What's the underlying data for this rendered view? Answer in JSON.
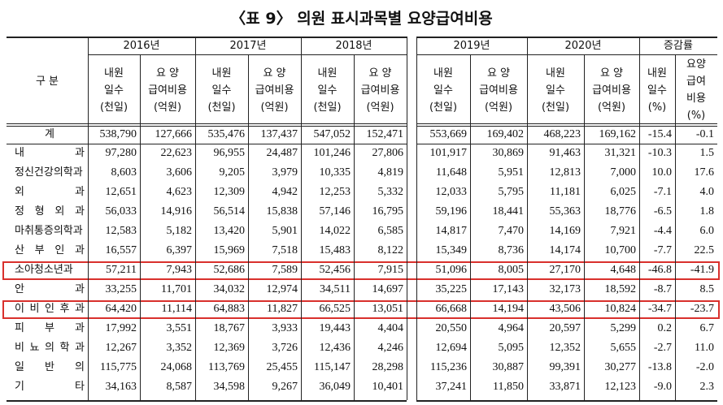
{
  "title": "〈표 9〉 의원 표시과목별 요양급여비용",
  "table": {
    "corner_label": "구 분",
    "column_groups": [
      {
        "label": "2016년",
        "subheaders": [
          [
            "내원",
            "일수",
            "(천일)"
          ],
          [
            "요 양",
            "급여비용",
            "(억원)"
          ]
        ]
      },
      {
        "label": "2017년",
        "subheaders": [
          [
            "내원",
            "일수",
            "(천일)"
          ],
          [
            "요 양",
            "급여비용",
            "(억원)"
          ]
        ]
      },
      {
        "label": "2018년",
        "subheaders": [
          [
            "내원",
            "일수",
            "(천일)"
          ],
          [
            "요 양",
            "급여비용",
            "(억원)"
          ]
        ]
      },
      {
        "label": "2019년",
        "subheaders": [
          [
            "내원",
            "일수",
            "(천일)"
          ],
          [
            "요 양",
            "급여비용",
            "(억원)"
          ]
        ]
      },
      {
        "label": "2020년",
        "subheaders": [
          [
            "내원",
            "일수",
            "(천일)"
          ],
          [
            "요 양",
            "급여비용",
            "(억원)"
          ]
        ]
      },
      {
        "label": "증감률",
        "subheaders": [
          [
            "내원",
            "일수",
            "(%)"
          ],
          [
            "요양",
            "급여",
            "비용",
            "(%)"
          ]
        ]
      }
    ],
    "rows": [
      {
        "label": "계",
        "cells": [
          "538,790",
          "127,666",
          "535,476",
          "137,437",
          "547,052",
          "152,471",
          "553,669",
          "169,402",
          "468,223",
          "169,162",
          "-15.4",
          "-0.1"
        ]
      },
      {
        "label": "내 과",
        "cells": [
          "97,280",
          "22,623",
          "96,955",
          "24,487",
          "101,246",
          "27,806",
          "101,917",
          "30,869",
          "91,463",
          "31,321",
          "-10.3",
          "1.5"
        ]
      },
      {
        "label": "정신건강의학과",
        "cells": [
          "8,603",
          "3,606",
          "9,205",
          "3,979",
          "10,335",
          "4,819",
          "11,648",
          "5,951",
          "12,813",
          "7,000",
          "10.0",
          "17.6"
        ]
      },
      {
        "label": "외 과",
        "cells": [
          "12,651",
          "4,623",
          "12,309",
          "4,942",
          "12,253",
          "5,332",
          "12,033",
          "5,795",
          "11,181",
          "6,025",
          "-7.1",
          "4.0"
        ]
      },
      {
        "label": "정 형 외 과",
        "cells": [
          "56,033",
          "14,916",
          "56,514",
          "15,838",
          "57,146",
          "16,795",
          "59,196",
          "18,441",
          "55,363",
          "18,776",
          "-6.5",
          "1.8"
        ]
      },
      {
        "label": "마취통증의학과",
        "cells": [
          "12,583",
          "5,182",
          "13,420",
          "5,901",
          "14,022",
          "6,585",
          "14,817",
          "7,470",
          "14,169",
          "7,921",
          "-4.4",
          "6.0"
        ]
      },
      {
        "label": "산 부 인 과",
        "cells": [
          "16,557",
          "6,397",
          "15,969",
          "7,518",
          "15,483",
          "8,122",
          "15,349",
          "8,736",
          "14,174",
          "10,700",
          "-7.7",
          "22.5"
        ]
      },
      {
        "label": "소아청소년과",
        "highlighted": true,
        "cells": [
          "57,211",
          "7,943",
          "52,686",
          "7,589",
          "52,456",
          "7,915",
          "51,096",
          "8,005",
          "27,170",
          "4,648",
          "-46.8",
          "-41.9"
        ]
      },
      {
        "label": "안 과",
        "cells": [
          "33,255",
          "11,701",
          "34,032",
          "12,974",
          "34,511",
          "14,697",
          "35,225",
          "17,143",
          "32,173",
          "18,592",
          "-8.7",
          "8.5"
        ]
      },
      {
        "label": "이 비 인 후 과",
        "highlighted": true,
        "cells": [
          "64,420",
          "11,114",
          "64,883",
          "11,827",
          "66,525",
          "13,051",
          "66,668",
          "14,194",
          "43,506",
          "10,824",
          "-34.7",
          "-23.7"
        ]
      },
      {
        "label": "피 부 과",
        "cells": [
          "17,992",
          "3,551",
          "18,767",
          "3,933",
          "19,443",
          "4,404",
          "20,550",
          "4,964",
          "20,597",
          "5,299",
          "0.2",
          "6.7"
        ]
      },
      {
        "label": "비 뇨 의 학 과",
        "cells": [
          "12,267",
          "3,352",
          "12,369",
          "3,726",
          "12,436",
          "4,246",
          "12,694",
          "5,095",
          "12,352",
          "5,655",
          "-2.7",
          "11.0"
        ]
      },
      {
        "label": "일 반 의",
        "cells": [
          "115,775",
          "24,068",
          "113,769",
          "25,455",
          "115,147",
          "28,298",
          "115,236",
          "30,887",
          "99,391",
          "30,277",
          "-13.8",
          "-2.0"
        ]
      },
      {
        "label": "기 타",
        "cells": [
          "34,163",
          "8,587",
          "34,598",
          "9,267",
          "36,049",
          "10,401",
          "37,241",
          "11,850",
          "33,871",
          "12,123",
          "-9.0",
          "2.3"
        ]
      }
    ]
  }
}
